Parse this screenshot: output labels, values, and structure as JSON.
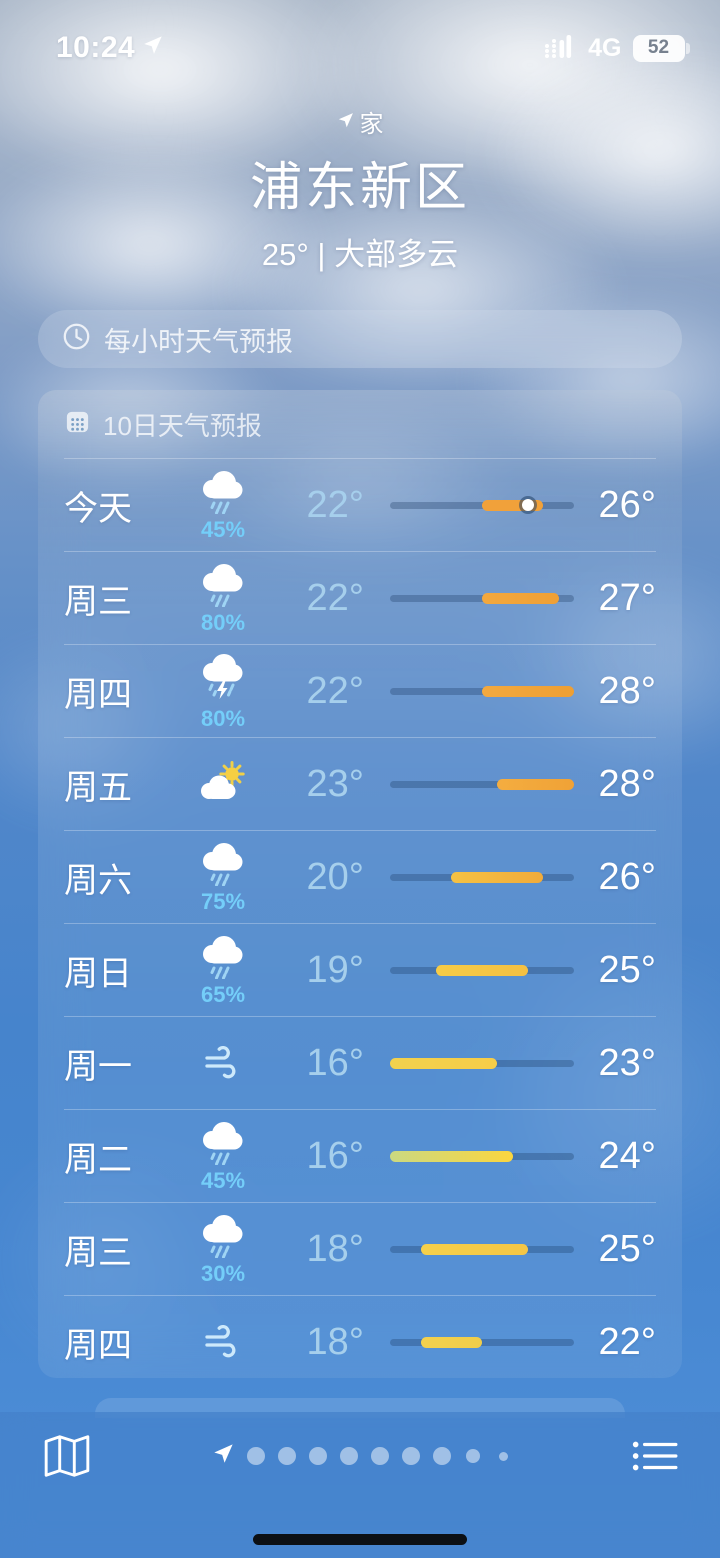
{
  "status_bar": {
    "time": "10:24",
    "network": "4G",
    "battery_percent": "52"
  },
  "header": {
    "location_label": "家",
    "city": "浦东新区",
    "current_summary": "25° | 大部多云"
  },
  "hourly_banner": {
    "label": "每小时天气预报"
  },
  "forecast": {
    "title": "10日天气预报",
    "temp_scale": {
      "min": 16,
      "max": 28
    },
    "rows": [
      {
        "day": "今天",
        "icon": "rain",
        "precip": "45%",
        "low": "22°",
        "high": "26°",
        "low_v": 22,
        "high_v": 26,
        "dot_v": 25,
        "bar_colors": [
          "#f1a13a",
          "#f1a13a"
        ]
      },
      {
        "day": "周三",
        "icon": "rain",
        "precip": "80%",
        "low": "22°",
        "high": "27°",
        "low_v": 22,
        "high_v": 27,
        "dot_v": null,
        "bar_colors": [
          "#f3a83e",
          "#efa035"
        ]
      },
      {
        "day": "周四",
        "icon": "storm",
        "precip": "80%",
        "low": "22°",
        "high": "28°",
        "low_v": 22,
        "high_v": 28,
        "dot_v": null,
        "bar_colors": [
          "#f3a93f",
          "#ee9f33"
        ]
      },
      {
        "day": "周五",
        "icon": "partly-sunny",
        "precip": null,
        "low": "23°",
        "high": "28°",
        "low_v": 23,
        "high_v": 28,
        "dot_v": null,
        "bar_colors": [
          "#f4ad40",
          "#f0a236"
        ]
      },
      {
        "day": "周六",
        "icon": "rain",
        "precip": "75%",
        "low": "20°",
        "high": "26°",
        "low_v": 20,
        "high_v": 26,
        "dot_v": null,
        "bar_colors": [
          "#f5c244",
          "#f1ab3a"
        ]
      },
      {
        "day": "周日",
        "icon": "rain",
        "precip": "65%",
        "low": "19°",
        "high": "25°",
        "low_v": 19,
        "high_v": 25,
        "dot_v": null,
        "bar_colors": [
          "#f6cc47",
          "#f4c043"
        ]
      },
      {
        "day": "周一",
        "icon": "wind",
        "precip": null,
        "low": "16°",
        "high": "23°",
        "low_v": 16,
        "high_v": 23,
        "dot_v": null,
        "bar_colors": [
          "#f2d14e",
          "#f6cd48"
        ]
      },
      {
        "day": "周二",
        "icon": "rain",
        "precip": "45%",
        "low": "16°",
        "high": "24°",
        "low_v": 16,
        "high_v": 24,
        "dot_v": null,
        "bar_colors": [
          "#cbd981",
          "#fbd63f"
        ]
      },
      {
        "day": "周三",
        "icon": "rain",
        "precip": "30%",
        "low": "18°",
        "high": "25°",
        "low_v": 18,
        "high_v": 25,
        "dot_v": null,
        "bar_colors": [
          "#f6d04a",
          "#f4c646"
        ]
      },
      {
        "day": "周四",
        "icon": "wind",
        "precip": null,
        "low": "18°",
        "high": "22°",
        "low_v": 18,
        "high_v": 22,
        "dot_v": null,
        "bar_colors": [
          "#f3d14e",
          "#f0cd4a"
        ]
      }
    ]
  },
  "toolbar": {
    "page_count": 9,
    "active_page": "current-location"
  },
  "colors": {
    "accent_orange": "#f1a13a",
    "accent_yellow": "#f6d04b",
    "precip_text": "#74cef9",
    "low_temp_text": "#a6cfec",
    "bar_track": "rgba(22,52,92,0.30)"
  }
}
